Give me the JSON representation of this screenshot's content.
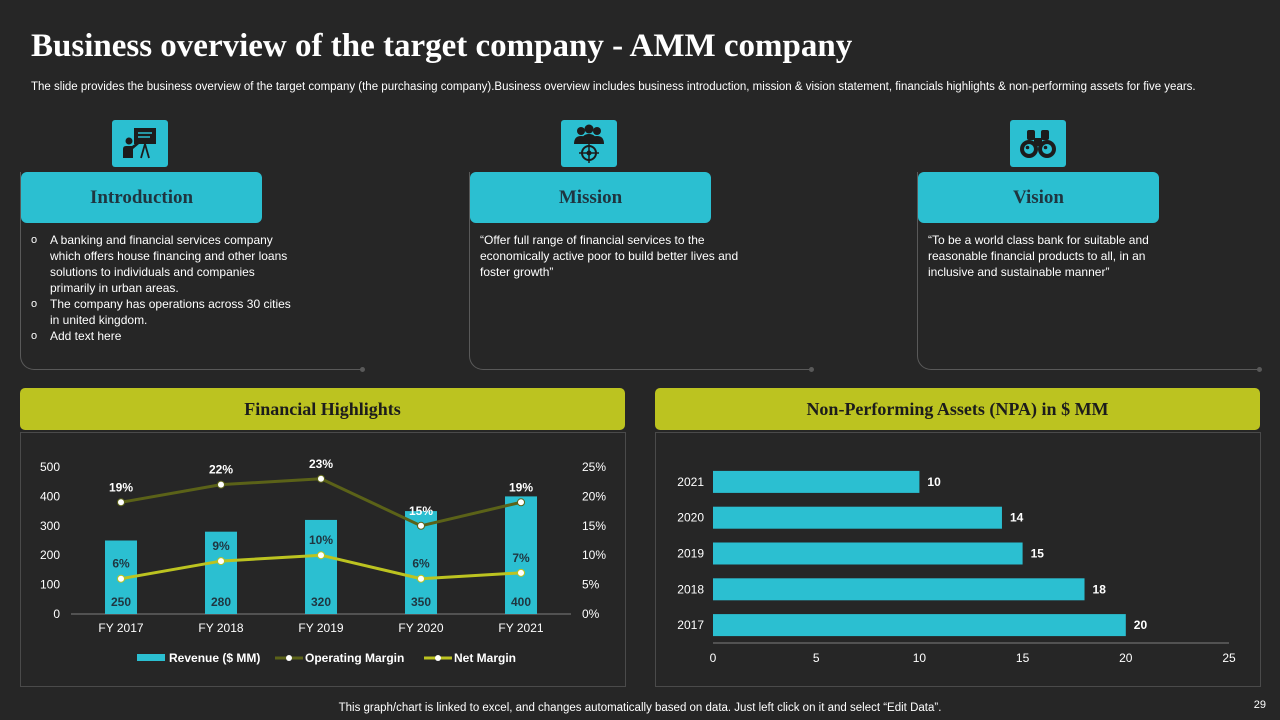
{
  "header": {
    "title": "Business overview of the target company - AMM company",
    "subtitle": "The slide provides the business overview of the target company (the purchasing company).Business overview includes business introduction, mission & vision statement, financials highlights & non-performing assets for five years."
  },
  "cards": {
    "introduction": {
      "heading": "Introduction",
      "icon": "presentation-icon",
      "bullets": [
        "A banking and financial services company which offers house financing and other loans solutions to individuals and companies primarily in urban areas.",
        "The company has operations across 30 cities in united kingdom.",
        "Add text here"
      ]
    },
    "mission": {
      "heading": "Mission",
      "icon": "team-target-icon",
      "text": "“Offer full range of financial services to the economically active poor to build better lives and foster growth”"
    },
    "vision": {
      "heading": "Vision",
      "icon": "binoculars-icon",
      "text": "“To be a world class bank for suitable and reasonable financial products to all, in an inclusive and sustainable manner”"
    }
  },
  "colors": {
    "accent": "#2bbfd1",
    "band": "#bcc320",
    "background": "#262626",
    "operating_margin_line": "#5b6218",
    "net_margin_line": "#bcc320"
  },
  "chart_data": [
    {
      "type": "bar",
      "title": "Financial Highlights",
      "categories": [
        "FY 2017",
        "FY 2018",
        "FY 2019",
        "FY 2020",
        "FY 2021"
      ],
      "y_ticks": [
        "0",
        "100",
        "200",
        "300",
        "400",
        "500"
      ],
      "y2_ticks": [
        "0%",
        "5%",
        "10%",
        "15%",
        "20%",
        "25%"
      ],
      "ylim": [
        0,
        500
      ],
      "y2lim": [
        0,
        25
      ],
      "series": [
        {
          "name": "Revenue ($ MM)",
          "kind": "bar",
          "values": [
            250,
            280,
            320,
            350,
            400
          ],
          "labels": [
            "250",
            "280",
            "320",
            "350",
            "400"
          ]
        },
        {
          "name": "Operating Margin",
          "kind": "line",
          "axis": "right",
          "values": [
            19,
            22,
            23,
            15,
            19
          ],
          "labels": [
            "19%",
            "22%",
            "23%",
            "15%",
            "19%"
          ]
        },
        {
          "name": "Net Margin",
          "kind": "line",
          "axis": "right",
          "values": [
            6,
            9,
            10,
            6,
            7
          ],
          "labels": [
            "6%",
            "9%",
            "10%",
            "6%",
            "7%"
          ]
        }
      ]
    },
    {
      "type": "bar",
      "orientation": "horizontal",
      "title": "Non-Performing Assets (NPA) in $ MM",
      "categories": [
        "2021",
        "2020",
        "2019",
        "2018",
        "2017"
      ],
      "values": [
        10,
        14,
        15,
        18,
        20
      ],
      "value_labels": [
        "10",
        "14",
        "15",
        "18",
        "20"
      ],
      "x_ticks": [
        "0",
        "5",
        "10",
        "15",
        "20",
        "25"
      ],
      "xlim": [
        0,
        25
      ]
    }
  ],
  "footer": {
    "note": "This graph/chart is linked to excel, and changes automatically based on data. Just left click on it and select “Edit Data”.",
    "page_number": "29"
  }
}
